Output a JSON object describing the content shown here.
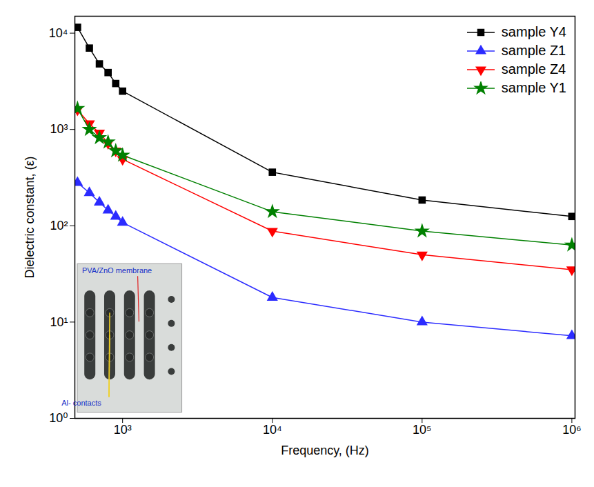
{
  "chart_data": {
    "type": "line",
    "x_label": "Frequency, (Hz)",
    "y_label": "Dielectric constant, (ε)",
    "log": true,
    "grid": false,
    "legend": "upper right",
    "xlim": [
      480,
      1050000
    ],
    "ylim": [
      1,
      15000
    ],
    "xticks": [
      {
        "value": 1000,
        "label": "10³"
      },
      {
        "value": 10000,
        "label": "10⁴"
      },
      {
        "value": 100000,
        "label": "10⁵"
      },
      {
        "value": 1000000,
        "label": "10⁶"
      }
    ],
    "yticks": [
      {
        "value": 1,
        "label": "10⁰"
      },
      {
        "value": 10,
        "label": "10¹"
      },
      {
        "value": 100,
        "label": "10²"
      },
      {
        "value": 1000,
        "label": "10³"
      },
      {
        "value": 10000,
        "label": "10⁴"
      }
    ],
    "x": [
      500,
      600,
      700,
      800,
      900,
      1000,
      10000,
      100000,
      1000000
    ],
    "series": [
      {
        "name": "sample Y4",
        "color": "#000000",
        "marker": "square",
        "values": [
          11500,
          7000,
          4800,
          3900,
          3000,
          2500,
          360,
          185,
          125
        ]
      },
      {
        "name": "sample Z1",
        "color": "#2b2bff",
        "marker": "triangle",
        "values": [
          280,
          220,
          175,
          145,
          125,
          108,
          18,
          10,
          7.2
        ]
      },
      {
        "name": "sample Z4",
        "color": "#ff0000",
        "marker": "triangle-down",
        "values": [
          1600,
          1150,
          920,
          720,
          600,
          490,
          88,
          50,
          35
        ]
      },
      {
        "name": "sample Y1",
        "color": "#008000",
        "marker": "star",
        "values": [
          1650,
          1000,
          820,
          740,
          600,
          540,
          140,
          88,
          63
        ]
      }
    ],
    "annotations": [
      "PVA/ZnO membrane",
      "Al- contacts"
    ]
  }
}
